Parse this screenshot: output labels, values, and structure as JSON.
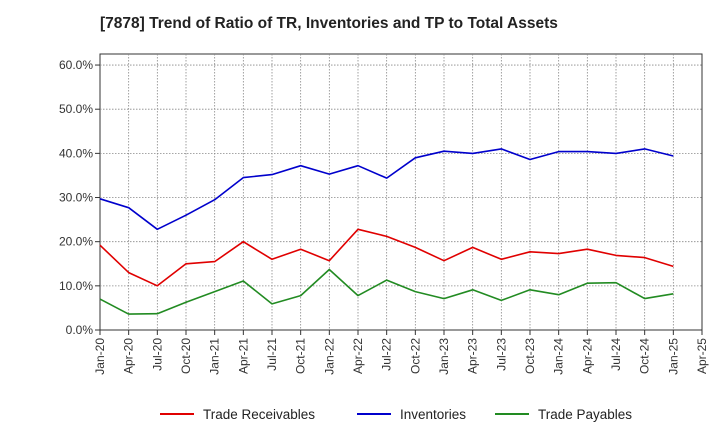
{
  "chart_data": {
    "type": "line",
    "title": "[7878]  Trend of Ratio of TR, Inventories and TP to Total Assets",
    "xlabel": "",
    "ylabel": "",
    "ylim": [
      0,
      62.5
    ],
    "y_ticks": [
      0,
      10,
      20,
      30,
      40,
      50,
      60
    ],
    "y_tick_labels": [
      "0.0%",
      "10.0%",
      "20.0%",
      "30.0%",
      "40.0%",
      "50.0%",
      "60.0%"
    ],
    "x_tick_labels": [
      "Jan-20",
      "Apr-20",
      "Jul-20",
      "Oct-20",
      "Jan-21",
      "Apr-21",
      "Jul-21",
      "Oct-21",
      "Jan-22",
      "Apr-22",
      "Jul-22",
      "Oct-22",
      "Jan-23",
      "Apr-23",
      "Jul-23",
      "Oct-23",
      "Jan-24",
      "Apr-24",
      "Jul-24",
      "Oct-24",
      "Jan-25",
      "Apr-25"
    ],
    "categories": [
      "Jan-20",
      "Apr-20",
      "Jul-20",
      "Oct-20",
      "Jan-21",
      "Apr-21",
      "Jul-21",
      "Oct-21",
      "Jan-22",
      "Apr-22",
      "Jul-22",
      "Oct-22",
      "Jan-23",
      "Apr-23",
      "Jul-23",
      "Oct-23",
      "Jan-24",
      "Apr-24",
      "Jul-24",
      "Oct-24",
      "Jan-25"
    ],
    "grid": true,
    "legend_position": "bottom",
    "series": [
      {
        "name": "Trade Receivables",
        "color": "#e00000",
        "values": [
          19.2,
          13.0,
          10.0,
          15.0,
          15.5,
          20.0,
          16.0,
          18.3,
          15.7,
          22.8,
          21.2,
          18.7,
          15.7,
          18.7,
          16.0,
          17.7,
          17.3,
          18.3,
          16.9,
          16.4,
          14.4
        ]
      },
      {
        "name": "Inventories",
        "color": "#0000cc",
        "values": [
          29.7,
          27.7,
          22.8,
          26.0,
          29.5,
          34.5,
          35.2,
          37.2,
          35.3,
          37.2,
          34.4,
          39.0,
          40.5,
          40.0,
          41.0,
          38.6,
          40.4,
          40.4,
          40.0,
          41.0,
          39.4
        ]
      },
      {
        "name": "Trade Payables",
        "color": "#228b22",
        "values": [
          7.0,
          3.6,
          3.7,
          6.3,
          8.7,
          11.1,
          5.9,
          7.8,
          13.7,
          7.8,
          11.3,
          8.7,
          7.1,
          9.1,
          6.7,
          9.1,
          8.0,
          10.6,
          10.7,
          7.1,
          8.2
        ]
      }
    ]
  }
}
